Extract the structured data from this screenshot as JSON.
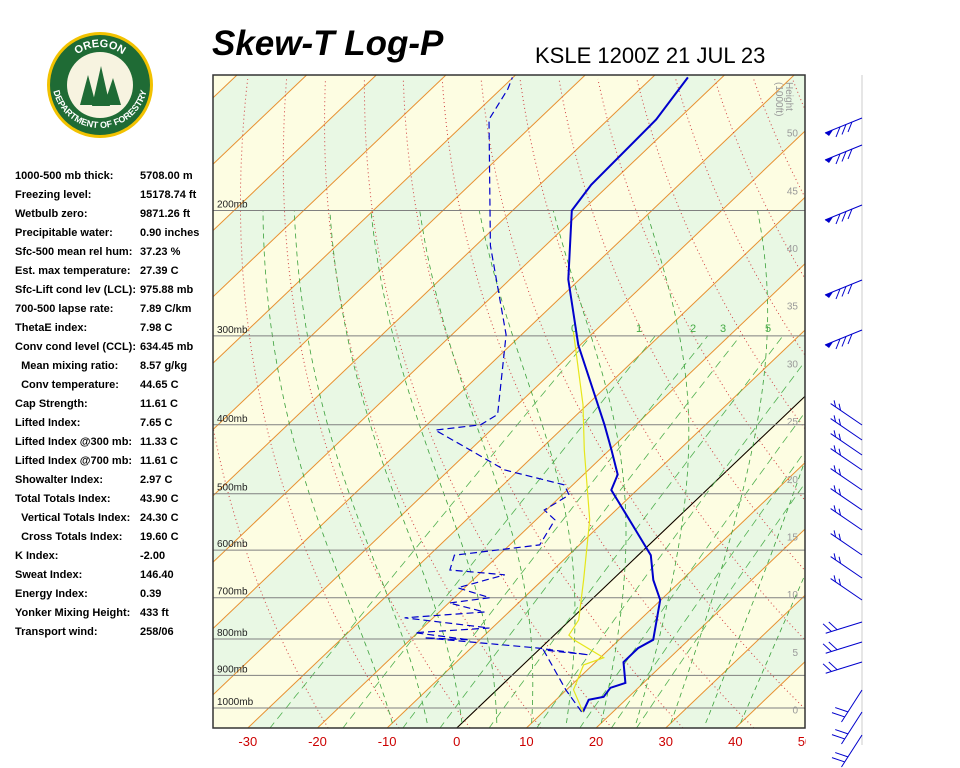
{
  "logo": {
    "top": "OREGON",
    "bottom": "DEPARTMENT OF FORESTRY"
  },
  "stats": [
    [
      "1000-500 mb thick:",
      "5708.00 m"
    ],
    [
      "Freezing level:",
      "15178.74 ft"
    ],
    [
      "Wetbulb zero:",
      "9871.26 ft"
    ],
    [
      "Precipitable water:",
      "0.90 inches"
    ],
    [
      "Sfc-500 mean rel hum:",
      "37.23 %"
    ],
    [
      "Est. max temperature:",
      "27.39 C"
    ],
    [
      "Sfc-Lift cond lev (LCL):",
      "975.88 mb"
    ],
    [
      "700-500 lapse rate:",
      "7.89 C/km"
    ],
    [
      "ThetaE index:",
      "7.98 C"
    ],
    [
      "Conv cond level (CCL):",
      "634.45 mb"
    ],
    [
      "  Mean mixing ratio:",
      "8.57 g/kg"
    ],
    [
      "  Conv temperature:",
      "44.65 C"
    ],
    [
      "Cap Strength:",
      "11.61 C"
    ],
    [
      "Lifted Index:",
      "7.65 C"
    ],
    [
      "Lifted Index @300 mb:",
      "11.33 C"
    ],
    [
      "Lifted Index @700 mb:",
      "11.61 C"
    ],
    [
      "Showalter Index:",
      "2.97 C"
    ],
    [
      "Total Totals Index:",
      "43.90 C"
    ],
    [
      "  Vertical Totals Index:",
      "24.30 C"
    ],
    [
      "  Cross Totals Index:",
      "19.60 C"
    ],
    [
      "K Index:",
      "-2.00"
    ],
    [
      "Sweat Index:",
      "146.40"
    ],
    [
      "Energy Index:",
      "0.39"
    ],
    [
      "Yonker Mixing Height:",
      "433 ft"
    ],
    [
      "Transport wind:",
      "258/06"
    ]
  ],
  "chart_data": {
    "type": "skew-t",
    "title": "Skew-T Log-P",
    "subtitle": "KSLE 1200Z 21 JUL 23",
    "y2label": [
      "Height",
      "(1000ft)"
    ],
    "xlim": [
      -35,
      50
    ],
    "xticks": [
      -30,
      -20,
      -10,
      0,
      10,
      20,
      30,
      40,
      50
    ],
    "ylim": [
      1067,
      129
    ],
    "ylog": true,
    "yticks": [
      {
        "value": 1000,
        "label": "1000mb"
      },
      {
        "value": 900,
        "label": "900mb"
      },
      {
        "value": 800,
        "label": "800mb"
      },
      {
        "value": 700,
        "label": "700mb"
      },
      {
        "value": 600,
        "label": "600mb"
      },
      {
        "value": 500,
        "label": "500mb"
      },
      {
        "value": 400,
        "label": "400mb"
      },
      {
        "value": 300,
        "label": "300mb"
      },
      {
        "value": 200,
        "label": "200mb"
      }
    ],
    "y2lim": [
      -1.6,
      55
    ],
    "y2ticks": [
      0,
      5,
      10,
      15,
      20,
      25,
      30,
      35,
      40,
      45,
      50
    ],
    "mixing_ratio_labels": [
      "0",
      "1",
      "2",
      "3",
      "5"
    ],
    "series": [
      {
        "color": "#0000cc",
        "dash": false,
        "pressure": [
          1013,
          974,
          965,
          937,
          922,
          862,
          824,
          802,
          752,
          705,
          661,
          610,
          544,
          494,
          470,
          434,
          400,
          309,
          250,
          200,
          184,
          149,
          130
        ],
        "values": [
          15.7,
          14.7,
          16.4,
          16.0,
          17.4,
          14.0,
          14.0,
          14.9,
          12.4,
          9.9,
          5.9,
          1.8,
          -6.6,
          -13.7,
          -15.1,
          -19.7,
          -24.5,
          -40.3,
          -51.6,
          -61.5,
          -62.6,
          -63.1,
          -64.9
        ]
      },
      {
        "color": "#0000cc",
        "dash": true,
        "pressure": [
          1013,
          943,
          829,
          842,
          824,
          797,
          802,
          784,
          772,
          747,
          733,
          712,
          700,
          678,
          650,
          640,
          610,
          590,
          544,
          527,
          502,
          486,
          463,
          434,
          407,
          400,
          387,
          299,
          224,
          149,
          135,
          130
        ],
        "values": [
          15.5,
          9.9,
          0.7,
          7.9,
          -0.3,
          -18.2,
          -11.5,
          -20.4,
          -10.4,
          -24.1,
          -13.5,
          -19.9,
          -14.9,
          -21.0,
          -16.2,
          -24.8,
          -26.4,
          -15.7,
          -17.3,
          -20.3,
          -19.0,
          -21.2,
          -32.0,
          -40.0,
          -48.0,
          -42.3,
          -41.4,
          -52.2,
          -67.9,
          -87.1,
          -89.0,
          -90.1
        ]
      },
      {
        "color": "#e6e61a",
        "dash": false,
        "pressure": [
          1013,
          943,
          870,
          850,
          802,
          790,
          752,
          661,
          544,
          434,
          375,
          296
        ],
        "values": [
          15.7,
          11.0,
          8.7,
          10.5,
          3.5,
          2.1,
          1.2,
          -4.1,
          -12.3,
          -23.6,
          -30.6,
          -43.0
        ]
      }
    ]
  }
}
